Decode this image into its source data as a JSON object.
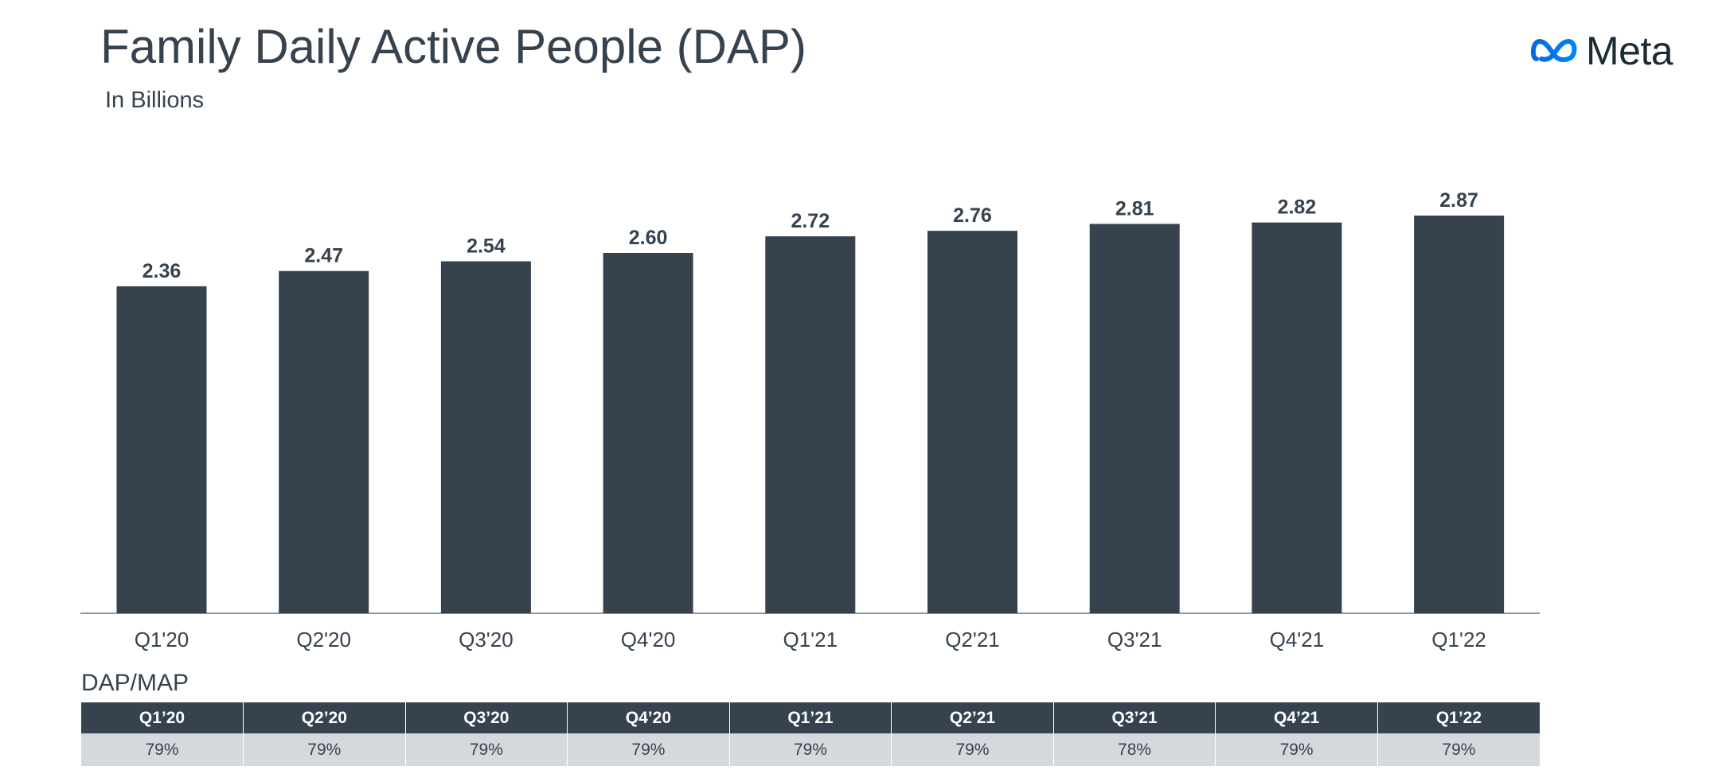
{
  "title": "Family Daily Active People (DAP)",
  "subtitle": "In Billions",
  "logo": {
    "text": "Meta",
    "icon": "meta-infinity-icon",
    "colors": [
      "#0668e1",
      "#0082fb"
    ]
  },
  "colors": {
    "bar": "#36424e",
    "axis": "#6b747c",
    "text": "#36424e",
    "table_header": "#36434f",
    "table_row": "#d5d9dd"
  },
  "chart_data": {
    "type": "bar",
    "title": "Family Daily Active People (DAP)",
    "subtitle": "In Billions",
    "categories": [
      "Q1'20",
      "Q2'20",
      "Q3'20",
      "Q4'20",
      "Q1'21",
      "Q2'21",
      "Q3'21",
      "Q4'21",
      "Q1'22"
    ],
    "values": [
      2.36,
      2.47,
      2.54,
      2.6,
      2.72,
      2.76,
      2.81,
      2.82,
      2.87
    ],
    "value_labels": [
      "2.36",
      "2.47",
      "2.54",
      "2.60",
      "2.72",
      "2.76",
      "2.81",
      "2.82",
      "2.87"
    ],
    "ylim": [
      0,
      2.87
    ],
    "xlabel": "",
    "ylabel": "",
    "grid": false,
    "legend": "none"
  },
  "table": {
    "title": "DAP/MAP",
    "headers": [
      "Q1’20",
      "Q2’20",
      "Q3’20",
      "Q4’20",
      "Q1’21",
      "Q2’21",
      "Q3’21",
      "Q4’21",
      "Q1’22"
    ],
    "values": [
      "79%",
      "79%",
      "79%",
      "79%",
      "79%",
      "79%",
      "78%",
      "79%",
      "79%"
    ]
  }
}
